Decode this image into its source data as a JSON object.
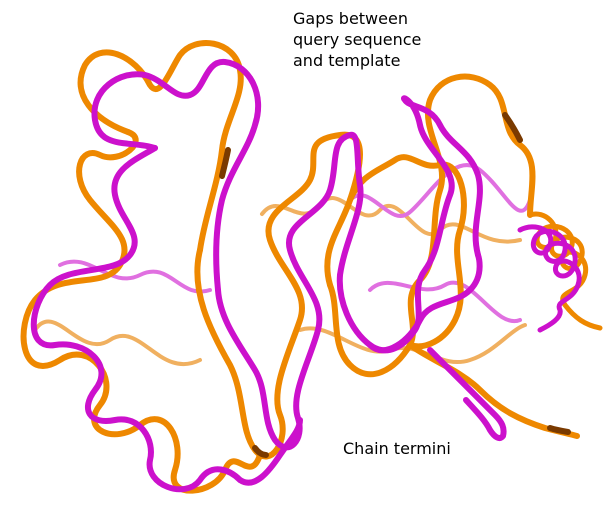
{
  "annotations": {
    "gaps_lines": [
      "Gaps between",
      "query sequence",
      "and template"
    ],
    "termini": "Chain termini"
  },
  "colors": {
    "background": "#ffffff",
    "magenta_chain": "#cc11cc",
    "magenta_chain_faint": "#e070e0",
    "orange_chain": "#ee8800",
    "orange_chain_faint": "#f0b060",
    "shadow": "#7a3a00"
  }
}
